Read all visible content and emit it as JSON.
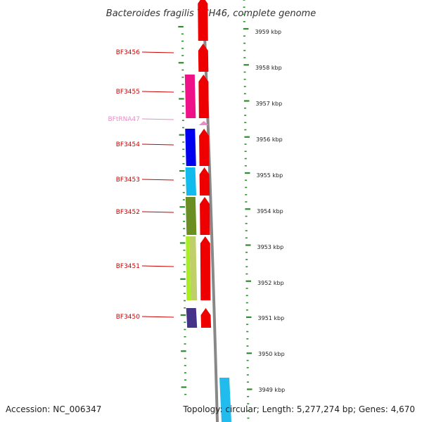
{
  "title": "Bacteroides fragilis YCH46, complete genome",
  "accession": "Accession: NC_006347",
  "info": "Topology: circular; Length: 5,277,274 bp; Genes: 4,670",
  "colors": {
    "label_cds": "#cc0000",
    "label_rna": "#ee88cc",
    "scale_tick": "#2e8b2e",
    "genome_line": "#888888",
    "feature_red": "#ee0000"
  },
  "kbp_ticks": [
    "3959 kbp",
    "3958 kbp",
    "3957 kbp",
    "3956 kbp",
    "3955 kbp",
    "3954 kbp",
    "3953 kbp",
    "3952 kbp",
    "3951 kbp",
    "3950 kbp",
    "3949 kbp"
  ],
  "genes": [
    {
      "name": "BF3456",
      "type": "CDS",
      "color": "#ee0000",
      "cog_color": null
    },
    {
      "name": "BF3455",
      "type": "CDS",
      "color": "#ee0000",
      "cog_color": "#ee1188"
    },
    {
      "name": "BFtRNA47",
      "type": "tRNA",
      "color": "#ee88cc",
      "cog_color": null
    },
    {
      "name": "BF3454",
      "type": "CDS",
      "color": "#ee0000",
      "cog_color": "#0000ee"
    },
    {
      "name": "BF3453",
      "type": "CDS",
      "color": "#ee0000",
      "cog_color": "#11bbee"
    },
    {
      "name": "BF3452",
      "type": "CDS",
      "color": "#ee0000",
      "cog_color": "#6b8e23"
    },
    {
      "name": "BF3451",
      "type": "CDS",
      "color": "#ee0000",
      "cog_color": "#aaee22"
    },
    {
      "name": "BF3450",
      "type": "CDS",
      "color": "#ee0000",
      "cog_color": "#443388"
    }
  ]
}
